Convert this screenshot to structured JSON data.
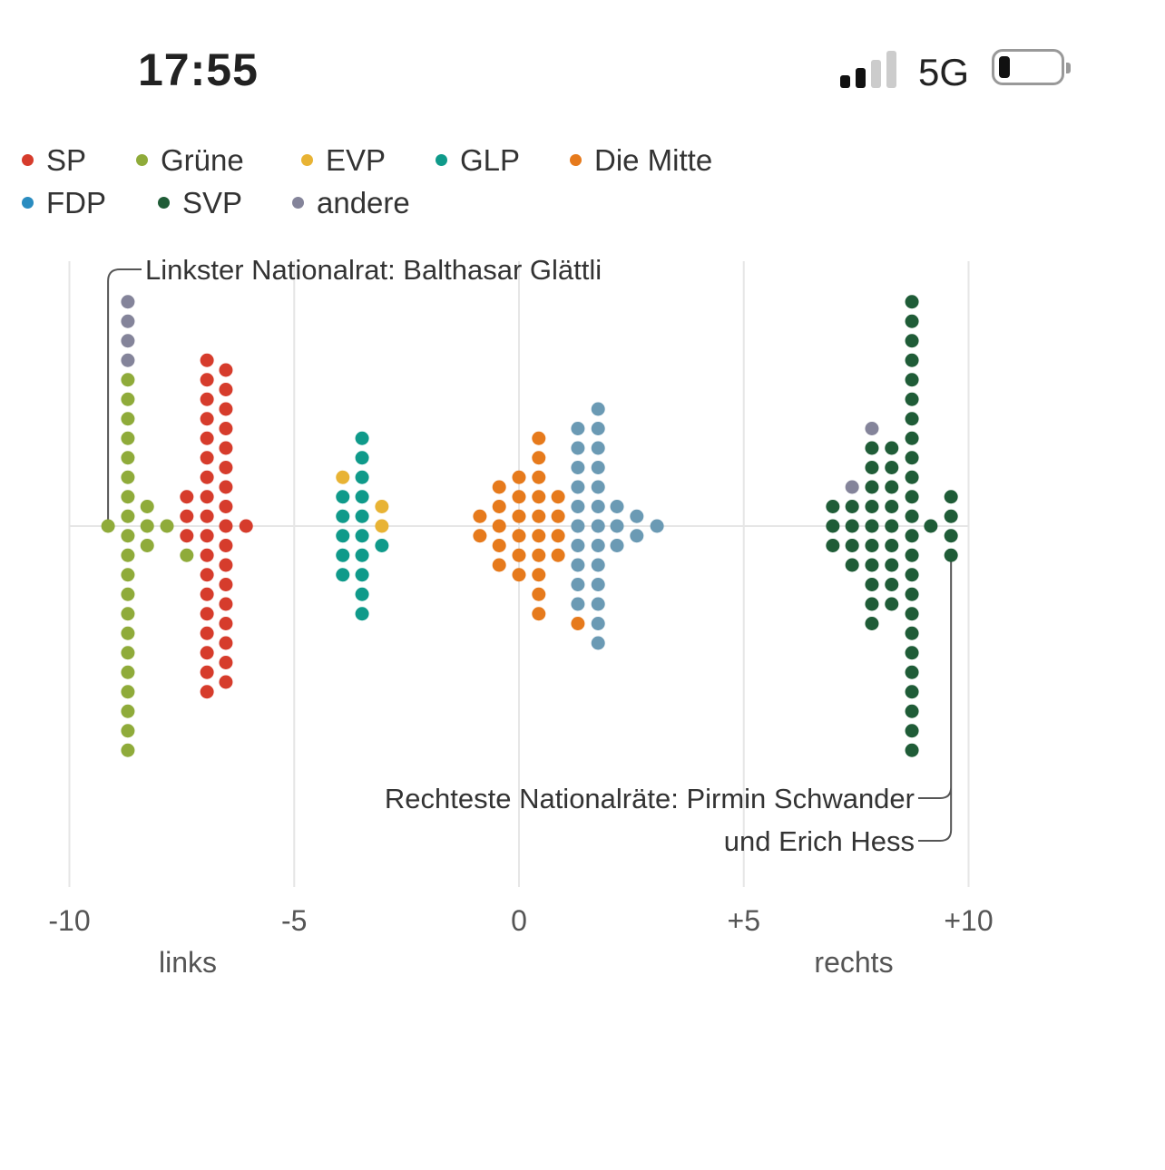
{
  "status_bar": {
    "time": "17:55",
    "network": "5G",
    "signal_bars": 2,
    "signal_total": 4,
    "battery_percent": 10
  },
  "colors": {
    "SP": "#d63c2c",
    "Grüne": "#8fab3a",
    "EVP": "#e8b334",
    "GLP": "#0f9a8a",
    "Die Mitte": "#e67a1c",
    "FDP": "#6b9ab4",
    "FDP_legend": "#2a8cc0",
    "SVP": "#1f5c37",
    "andere": "#84849a",
    "grid": "#e6e6e6",
    "leader": "#555555"
  },
  "chart_data": {
    "type": "scatter",
    "subtype": "beeswarm",
    "legend": [
      {
        "party": "SP",
        "label": "SP"
      },
      {
        "party": "Grüne",
        "label": "Grüne"
      },
      {
        "party": "EVP",
        "label": "EVP"
      },
      {
        "party": "GLP",
        "label": "GLP"
      },
      {
        "party": "Die Mitte",
        "label": "Die Mitte"
      },
      {
        "party": "FDP",
        "label": "FDP"
      },
      {
        "party": "SVP",
        "label": "SVP"
      },
      {
        "party": "andere",
        "label": "andere"
      }
    ],
    "legend_placement": "top-left",
    "xlim": [
      -10,
      10
    ],
    "ticks": [
      {
        "value": -10,
        "label": "-10"
      },
      {
        "value": -5,
        "label": "-5"
      },
      {
        "value": 0,
        "label": "0"
      },
      {
        "value": 5,
        "label": "+5"
      },
      {
        "value": 10,
        "label": "+10"
      }
    ],
    "axis_labels": {
      "left": "links",
      "right": "rechts"
    },
    "grid": true,
    "columns": [
      {
        "x": -9.14,
        "dots": [
          [
            "Grüne",
            1
          ]
        ]
      },
      {
        "x": -8.7,
        "dots": [
          [
            "andere",
            4
          ],
          [
            "Grüne",
            20
          ]
        ]
      },
      {
        "x": -8.27,
        "dots": [
          [
            "Grüne",
            3
          ]
        ]
      },
      {
        "x": -7.83,
        "dots": [
          [
            "Grüne",
            1
          ]
        ]
      },
      {
        "x": -7.39,
        "dots": [
          [
            "SP",
            3
          ],
          [
            "Grüne",
            1
          ]
        ]
      },
      {
        "x": -6.94,
        "dots": [
          [
            "SP",
            18
          ]
        ]
      },
      {
        "x": -6.52,
        "dots": [
          [
            "SP",
            17
          ]
        ]
      },
      {
        "x": -6.07,
        "dots": [
          [
            "SP",
            1
          ]
        ]
      },
      {
        "x": -3.92,
        "dots": [
          [
            "EVP",
            1
          ],
          [
            "GLP",
            5
          ]
        ]
      },
      {
        "x": -3.49,
        "dots": [
          [
            "GLP",
            10
          ]
        ]
      },
      {
        "x": -3.05,
        "dots": [
          [
            "EVP",
            2
          ],
          [
            "GLP",
            1
          ]
        ]
      },
      {
        "x": -0.87,
        "dots": [
          [
            "Die Mitte",
            2
          ]
        ]
      },
      {
        "x": -0.44,
        "dots": [
          [
            "Die Mitte",
            5
          ]
        ]
      },
      {
        "x": 0.0,
        "dots": [
          [
            "Die Mitte",
            6
          ]
        ]
      },
      {
        "x": 0.44,
        "dots": [
          [
            "Die Mitte",
            10
          ]
        ]
      },
      {
        "x": 0.87,
        "dots": [
          [
            "Die Mitte",
            4
          ]
        ]
      },
      {
        "x": 1.31,
        "dots": [
          [
            "FDP",
            10
          ],
          [
            "Die Mitte",
            1
          ]
        ]
      },
      {
        "x": 1.76,
        "dots": [
          [
            "FDP",
            13
          ]
        ]
      },
      {
        "x": 2.18,
        "dots": [
          [
            "FDP",
            3
          ]
        ]
      },
      {
        "x": 2.62,
        "dots": [
          [
            "FDP",
            2
          ]
        ]
      },
      {
        "x": 3.07,
        "dots": [
          [
            "FDP",
            1
          ]
        ]
      },
      {
        "x": 6.98,
        "dots": [
          [
            "SVP",
            3
          ]
        ]
      },
      {
        "x": 7.41,
        "dots": [
          [
            "andere",
            1
          ],
          [
            "SVP",
            4
          ]
        ]
      },
      {
        "x": 7.85,
        "dots": [
          [
            "andere",
            1
          ],
          [
            "SVP",
            10
          ]
        ]
      },
      {
        "x": 8.29,
        "dots": [
          [
            "SVP",
            9
          ]
        ]
      },
      {
        "x": 8.74,
        "dots": [
          [
            "SVP",
            24
          ]
        ]
      },
      {
        "x": 9.16,
        "dots": [
          [
            "SVP",
            1
          ]
        ]
      },
      {
        "x": 9.61,
        "dots": [
          [
            "SVP",
            4
          ]
        ]
      }
    ],
    "annotations": {
      "left": {
        "text": "Linkster Nationalrat: Balthasar Glättli",
        "x": -9.14
      },
      "right": {
        "line1": "Rechteste Nationalräte: Pirmin Schwander",
        "line2": "und Erich Hess",
        "x": 9.61
      }
    }
  }
}
